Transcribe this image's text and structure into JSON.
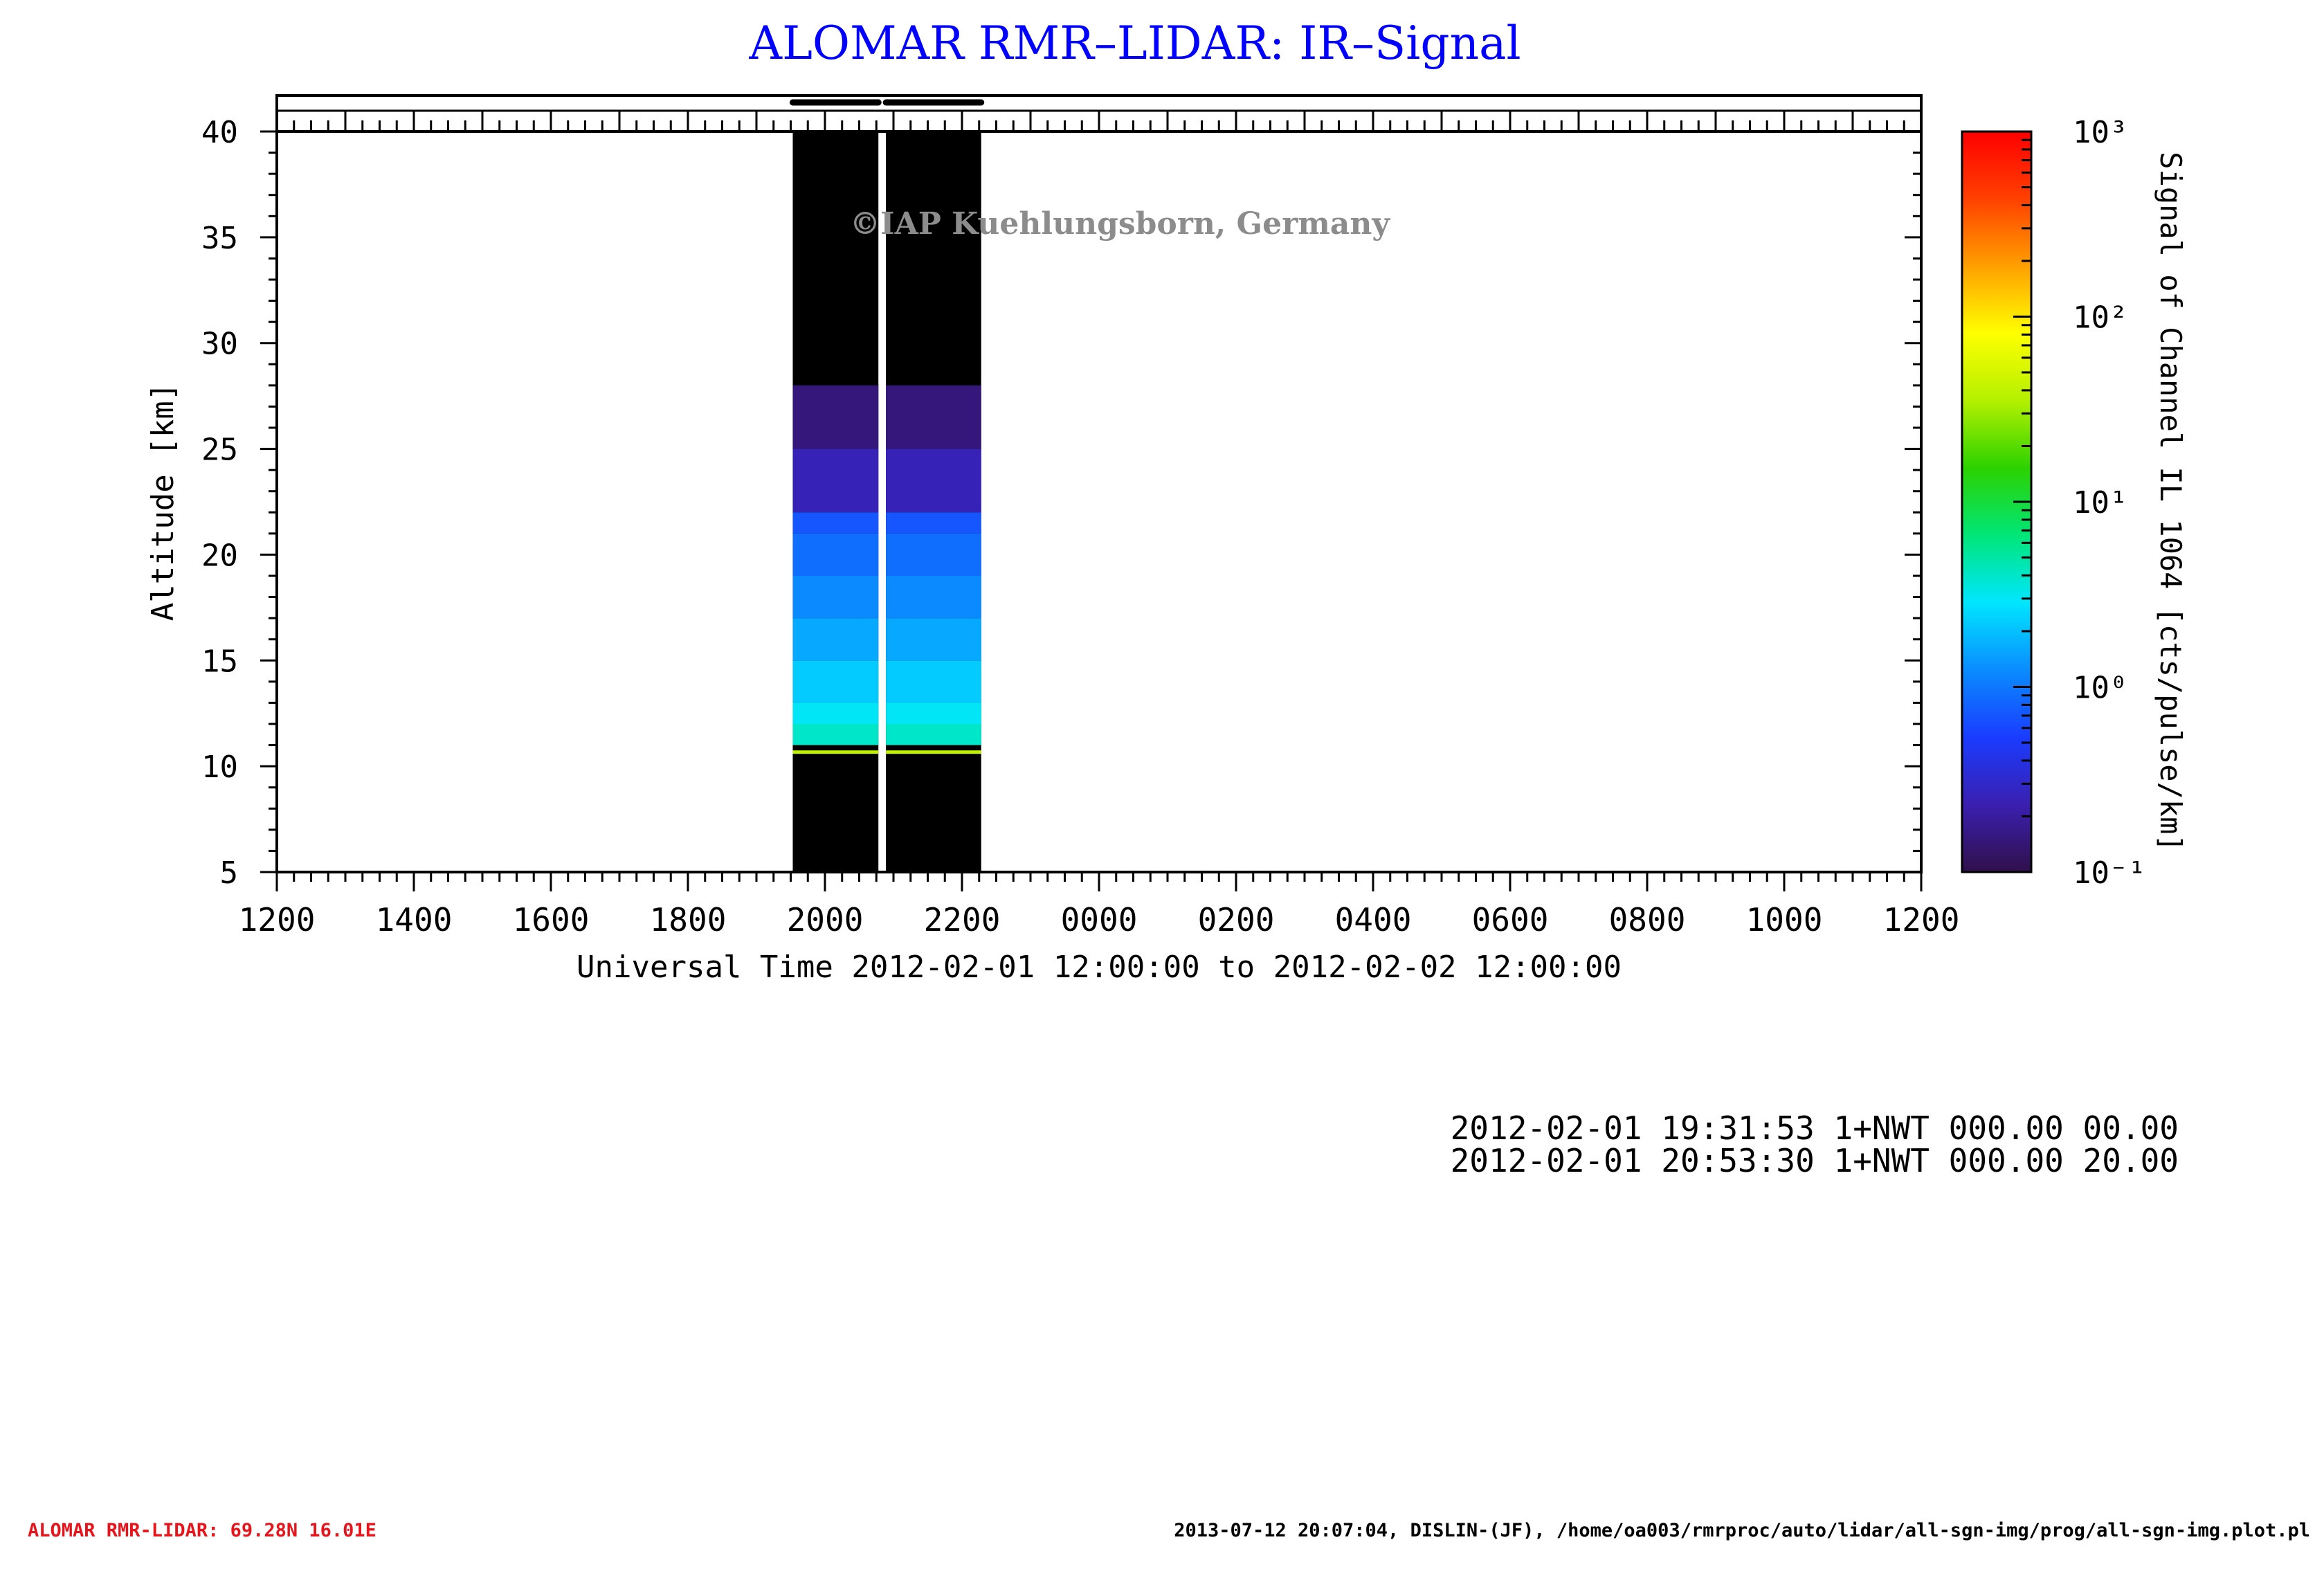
{
  "title": "ALOMAR RMR–LIDAR: IR–Signal",
  "watermark": "©IAP Kuehlungsborn, Germany",
  "info_lines": [
    "2012-02-01 19:31:53 1+NWT 000.00 00.00",
    "2012-02-01 20:53:30 1+NWT 000.00 20.00"
  ],
  "footer": {
    "left": "ALOMAR RMR-LIDAR: 69.28N 16.01E",
    "right": "2013-07-12 20:07:04, DISLIN-(JF), /home/oa003/rmrproc/auto/lidar/all-sgn-img/prog/all-sgn-img.plot.pl"
  },
  "colors": {
    "title": "#0000ff",
    "footer_left": "#e8141c",
    "watermark": "#8c8c8c",
    "colormap": [
      "#30104a",
      "#3a1fb0",
      "#1a3cff",
      "#0a8cff",
      "#00e6ff",
      "#00e678",
      "#2cd200",
      "#b4f000",
      "#ffff00",
      "#ffa000",
      "#ff4000",
      "#ff0000"
    ]
  },
  "chart_data": {
    "type": "heatmap",
    "title": "ALOMAR RMR–LIDAR: IR–Signal",
    "xlabel": "Universal Time 2012-02-01 12:00:00 to 2012-02-02 12:00:00",
    "ylabel": "Altitude [km]",
    "x_tick_labels": [
      "1200",
      "1400",
      "1600",
      "1800",
      "2000",
      "2200",
      "0000",
      "0200",
      "0400",
      "0600",
      "0800",
      "1000",
      "1200"
    ],
    "xlim_hours": [
      12,
      36
    ],
    "ylim": [
      5,
      40
    ],
    "y_ticks": [
      5,
      10,
      15,
      20,
      25,
      30,
      35,
      40
    ],
    "colorbar": {
      "label": "Signal of Channel IL 1064 [cts/pulse/km]",
      "scale": "log",
      "range": [
        0.1,
        1000
      ],
      "tick_labels": [
        "10⁻¹",
        "10⁰",
        "10¹",
        "10²",
        "10³"
      ]
    },
    "measurement_blocks": [
      {
        "start_hour": 19.53,
        "end_hour": 20.78
      },
      {
        "start_hour": 20.89,
        "end_hour": 22.28
      }
    ],
    "signal_profile": [
      {
        "alt_km": 10.5,
        "value": 0.0
      },
      {
        "alt_km": 11.0,
        "value": 4.0
      },
      {
        "alt_km": 12.0,
        "value": 3.0
      },
      {
        "alt_km": 13.0,
        "value": 2.2
      },
      {
        "alt_km": 15.0,
        "value": 1.6
      },
      {
        "alt_km": 17.0,
        "value": 1.2
      },
      {
        "alt_km": 19.0,
        "value": 0.9
      },
      {
        "alt_km": 21.0,
        "value": 0.7
      },
      {
        "alt_km": 22.0,
        "value": 0.25
      },
      {
        "alt_km": 25.0,
        "value": 0.15
      },
      {
        "alt_km": 28.0,
        "value": 0.1
      }
    ]
  }
}
